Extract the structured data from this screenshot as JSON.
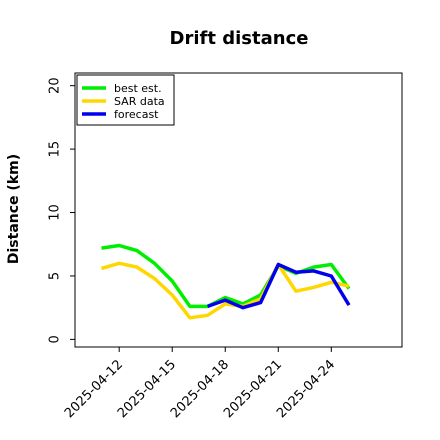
{
  "chart_data": {
    "type": "line",
    "title": "Drift distance",
    "xlabel": "",
    "ylabel": "Distance (km)",
    "x_axis": {
      "kind": "date",
      "range": [
        "2025-04-09 12:00",
        "2025-04-28 00:00"
      ],
      "tick_dates": [
        "2025-04-12",
        "2025-04-15",
        "2025-04-18",
        "2025-04-21",
        "2025-04-24"
      ],
      "tick_labels": [
        "2025-04-12",
        "2025-04-15",
        "2025-04-18",
        "2025-04-21",
        "2025-04-24"
      ]
    },
    "ylim": [
      -0.6,
      21
    ],
    "yticks": [
      0,
      5,
      10,
      15,
      20
    ],
    "grid": false,
    "legend_position": "top-left",
    "series": [
      {
        "name": "best est.",
        "color": "#00ee00",
        "points": [
          {
            "x": "2025-04-11 00:00",
            "y": 7.2
          },
          {
            "x": "2025-04-12 00:00",
            "y": 7.4
          },
          {
            "x": "2025-04-13 00:00",
            "y": 7.0
          },
          {
            "x": "2025-04-14 00:00",
            "y": 6.0
          },
          {
            "x": "2025-04-15 00:00",
            "y": 4.6
          },
          {
            "x": "2025-04-16 00:00",
            "y": 2.6
          },
          {
            "x": "2025-04-17 00:00",
            "y": 2.6
          },
          {
            "x": "2025-04-18 00:00",
            "y": 3.3
          },
          {
            "x": "2025-04-19 00:00",
            "y": 2.8
          },
          {
            "x": "2025-04-20 00:00",
            "y": 3.5
          },
          {
            "x": "2025-04-21 00:00",
            "y": 5.8
          },
          {
            "x": "2025-04-22 00:00",
            "y": 5.2
          },
          {
            "x": "2025-04-23 00:00",
            "y": 5.7
          },
          {
            "x": "2025-04-24 00:00",
            "y": 5.9
          },
          {
            "x": "2025-04-25 00:00",
            "y": 4.0
          }
        ]
      },
      {
        "name": "SAR data",
        "color": "#ffd700",
        "points": [
          {
            "x": "2025-04-11 00:00",
            "y": 5.6
          },
          {
            "x": "2025-04-12 00:00",
            "y": 6.0
          },
          {
            "x": "2025-04-13 00:00",
            "y": 5.7
          },
          {
            "x": "2025-04-14 00:00",
            "y": 4.8
          },
          {
            "x": "2025-04-15 00:00",
            "y": 3.5
          },
          {
            "x": "2025-04-16 00:00",
            "y": 1.7
          },
          {
            "x": "2025-04-17 00:00",
            "y": 1.9
          },
          {
            "x": "2025-04-18 00:00",
            "y": 2.8
          },
          {
            "x": "2025-04-19 00:00",
            "y": 2.6
          },
          {
            "x": "2025-04-20 00:00",
            "y": 3.2
          },
          {
            "x": "2025-04-21 00:00",
            "y": 5.9
          },
          {
            "x": "2025-04-22 00:00",
            "y": 3.8
          },
          {
            "x": "2025-04-23 00:00",
            "y": 4.1
          },
          {
            "x": "2025-04-24 00:00",
            "y": 4.5
          },
          {
            "x": "2025-04-25 00:00",
            "y": 4.2
          }
        ]
      },
      {
        "name": "forecast",
        "color": "#0000ee",
        "points": [
          {
            "x": "2025-04-17 00:00",
            "y": 2.6
          },
          {
            "x": "2025-04-18 00:00",
            "y": 3.1
          },
          {
            "x": "2025-04-19 00:00",
            "y": 2.5
          },
          {
            "x": "2025-04-20 00:00",
            "y": 2.9
          },
          {
            "x": "2025-04-21 00:00",
            "y": 5.9
          },
          {
            "x": "2025-04-22 00:00",
            "y": 5.3
          },
          {
            "x": "2025-04-23 00:00",
            "y": 5.4
          },
          {
            "x": "2025-04-24 00:00",
            "y": 5.0
          },
          {
            "x": "2025-04-25 00:00",
            "y": 2.7
          }
        ]
      }
    ]
  }
}
